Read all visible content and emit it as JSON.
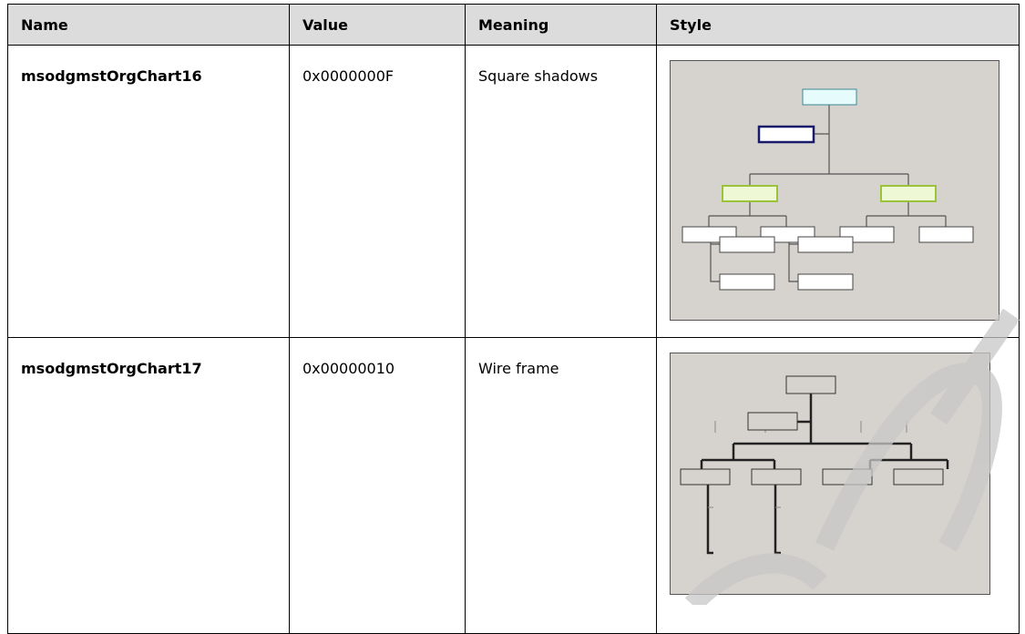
{
  "table": {
    "header": [
      "Name",
      "Value",
      "Meaning",
      "Style"
    ],
    "rows": [
      [
        "msodgmstOrgChart16",
        "0x0000000F",
        "Square shadows"
      ],
      [
        "msodgmstOrgChart17",
        "0x00000010",
        "Wire frame"
      ]
    ]
  }
}
